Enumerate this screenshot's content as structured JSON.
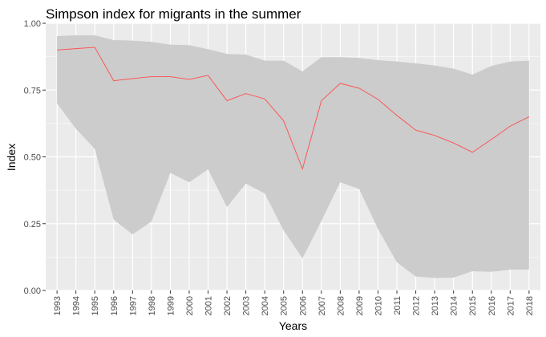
{
  "chart_data": {
    "type": "area",
    "title": "Simpson index for migrants in the summer",
    "xlabel": "Years",
    "ylabel": "Index",
    "x": [
      "1993",
      "1994",
      "1995",
      "1996",
      "1997",
      "1998",
      "1999",
      "2000",
      "2001",
      "2002",
      "2003",
      "2004",
      "2005",
      "2006",
      "2007",
      "2008",
      "2009",
      "2010",
      "2011",
      "2012",
      "2013",
      "2014",
      "2015",
      "2016",
      "2017",
      "2018"
    ],
    "series": [
      {
        "role": "line",
        "values": [
          0.9,
          0.905,
          0.91,
          0.785,
          0.793,
          0.8,
          0.8,
          0.79,
          0.805,
          0.71,
          0.737,
          0.717,
          0.635,
          0.455,
          0.71,
          0.775,
          0.757,
          0.715,
          0.655,
          0.6,
          0.58,
          0.552,
          0.517,
          0.565,
          0.615,
          0.65
        ]
      },
      {
        "role": "band-upper",
        "values": [
          0.952,
          0.955,
          0.955,
          0.937,
          0.935,
          0.93,
          0.92,
          0.918,
          0.903,
          0.885,
          0.883,
          0.86,
          0.86,
          0.82,
          0.873,
          0.873,
          0.87,
          0.862,
          0.857,
          0.85,
          0.842,
          0.83,
          0.808,
          0.84,
          0.857,
          0.86
        ]
      },
      {
        "role": "band-lower",
        "values": [
          0.7,
          0.605,
          0.53,
          0.265,
          0.21,
          0.258,
          0.44,
          0.405,
          0.453,
          0.312,
          0.4,
          0.363,
          0.225,
          0.12,
          0.26,
          0.405,
          0.38,
          0.23,
          0.105,
          0.052,
          0.047,
          0.048,
          0.072,
          0.07,
          0.078,
          0.078
        ]
      }
    ],
    "ylim": [
      0,
      1
    ],
    "yticks": [
      "0.00",
      "0.25",
      "0.50",
      "0.75",
      "1.00"
    ],
    "grid": true,
    "legend": "none",
    "colors": {
      "panel": "#ebebeb",
      "grid": "#ffffff",
      "band": "#cccccc",
      "line": "#ff4d4d",
      "tick_text": "#4d4d4d"
    }
  }
}
